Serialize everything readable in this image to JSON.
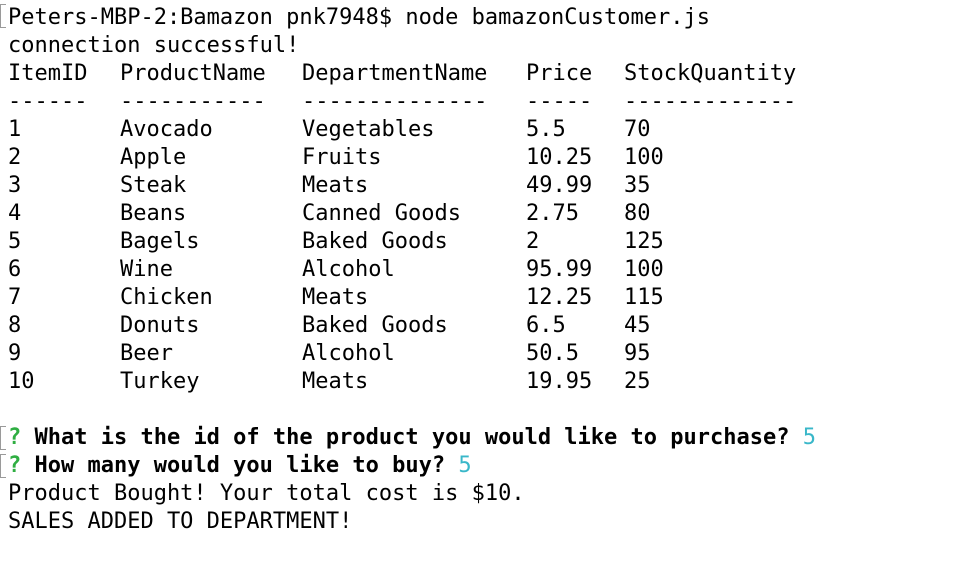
{
  "terminal": {
    "prompt_line": "Peters-MBP-2:Bamazon pnk7948$ node bamazonCustomer.js",
    "connection_message": "connection successful!",
    "headers": [
      "ItemID",
      "ProductName",
      "DepartmentName",
      "Price",
      "StockQuantity"
    ],
    "separators": [
      "------",
      "-----------",
      "--------------",
      "-----",
      "-------------"
    ],
    "rows": [
      [
        "1",
        "Avocado",
        "Vegetables",
        "5.5",
        "70"
      ],
      [
        "2",
        "Apple",
        "Fruits",
        "10.25",
        "100"
      ],
      [
        "3",
        "Steak",
        "Meats",
        "49.99",
        "35"
      ],
      [
        "4",
        "Beans",
        "Canned Goods",
        "2.75",
        "80"
      ],
      [
        "5",
        "Bagels",
        "Baked Goods",
        "2",
        "125"
      ],
      [
        "6",
        "Wine",
        "Alcohol",
        "95.99",
        "100"
      ],
      [
        "7",
        "Chicken",
        "Meats",
        "12.25",
        "115"
      ],
      [
        "8",
        "Donuts",
        "Baked Goods",
        "6.5",
        "45"
      ],
      [
        "9",
        "Beer",
        "Alcohol",
        "50.5",
        "95"
      ],
      [
        "10",
        "Turkey",
        "Meats",
        "19.95",
        "25"
      ]
    ],
    "question_mark": "?",
    "question_1": "What is the id of the product you would like to purchase?",
    "answer_1": "5",
    "question_2": "How many would you like to buy?",
    "answer_2": "5",
    "result_message": "Product Bought! Your total cost is $10.",
    "sales_message": "SALES ADDED TO DEPARTMENT!"
  },
  "colors": {
    "question_mark": "#2fae42",
    "answer": "#39b7c9",
    "text": "#000000",
    "background": "#ffffff"
  }
}
